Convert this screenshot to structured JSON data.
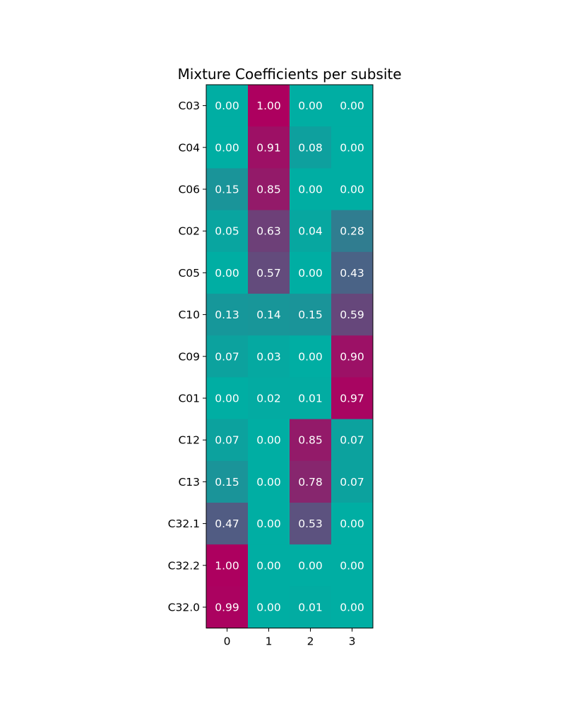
{
  "chart_data": {
    "type": "heatmap",
    "title": "Mixture Coefficients per subsite",
    "xlabel": "",
    "ylabel": "",
    "x_categories": [
      "0",
      "1",
      "2",
      "3"
    ],
    "y_categories": [
      "C03",
      "C04",
      "C06",
      "C02",
      "C05",
      "C10",
      "C09",
      "C01",
      "C12",
      "C13",
      "C32.1",
      "C32.2",
      "C32.0"
    ],
    "values": [
      [
        0.0,
        1.0,
        0.0,
        0.0
      ],
      [
        0.0,
        0.91,
        0.08,
        0.0
      ],
      [
        0.15,
        0.85,
        0.0,
        0.0
      ],
      [
        0.05,
        0.63,
        0.04,
        0.28
      ],
      [
        0.0,
        0.57,
        0.0,
        0.43
      ],
      [
        0.13,
        0.14,
        0.15,
        0.59
      ],
      [
        0.07,
        0.03,
        0.0,
        0.9
      ],
      [
        0.0,
        0.02,
        0.01,
        0.97
      ],
      [
        0.07,
        0.0,
        0.85,
        0.07
      ],
      [
        0.15,
        0.0,
        0.78,
        0.07
      ],
      [
        0.47,
        0.0,
        0.53,
        0.0
      ],
      [
        1.0,
        0.0,
        0.0,
        0.0
      ],
      [
        0.99,
        0.0,
        0.01,
        0.0
      ]
    ],
    "value_range": [
      0,
      1
    ],
    "colormap": {
      "low": "#00AEA3",
      "high": "#AD005F"
    },
    "cell_label_color": "#ffffff",
    "grid": false,
    "legend": "none"
  }
}
